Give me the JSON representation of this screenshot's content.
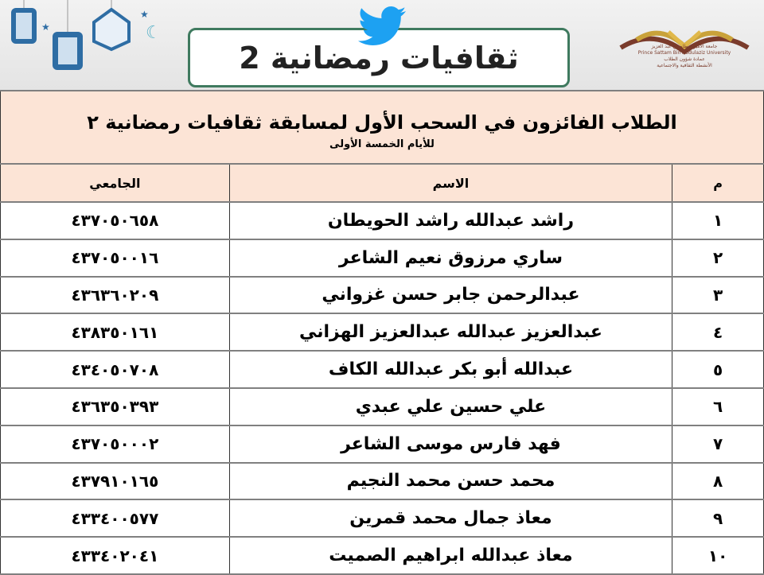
{
  "banner": {
    "title": "ثقافيات رمضانية 2"
  },
  "logo": {
    "lines": [
      "جامعة الأمير سطام بن عبد العزيز",
      "Prince Sattam Bin Abdulaziz University",
      "عمادة شؤون الطلاب",
      "الأنشطة الثقافية والاجتماعية"
    ]
  },
  "colors": {
    "header_fill": "#fce4d6",
    "banner_border": "#3f7a5f",
    "twitter_blue": "#1da1f2",
    "lantern_blue": "#2e6da4"
  },
  "table": {
    "title": "الطلاب الفائزون في السحب الأول لمسابقة ثقافيات رمضانية ٢",
    "subtitle": "للأيام الخمسة الأولى",
    "columns": [
      "م",
      "الاسم",
      "الجامعي"
    ],
    "rows": [
      {
        "n": "١",
        "name": "راشد عبدالله راشد الحويطان",
        "id": "٤٣٧٠٥٠٦٥٨"
      },
      {
        "n": "٢",
        "name": "ساري مرزوق نعيم الشاعر",
        "id": "٤٣٧٠٥٠٠١٦"
      },
      {
        "n": "٣",
        "name": "عبدالرحمن جابر حسن غزواني",
        "id": "٤٣٦٣٦٠٢٠٩"
      },
      {
        "n": "٤",
        "name": "عبدالعزيز عبدالله عبدالعزيز الهزاني",
        "id": "٤٣٨٣٥٠١٦١"
      },
      {
        "n": "٥",
        "name": "عبدالله أبو بكر عبدالله الكاف",
        "id": "٤٣٤٠٥٠٧٠٨"
      },
      {
        "n": "٦",
        "name": "علي حسين علي عبدي",
        "id": "٤٣٦٣٥٠٣٩٣"
      },
      {
        "n": "٧",
        "name": "فهد فارس موسى الشاعر",
        "id": "٤٣٧٠٥٠٠٠٢"
      },
      {
        "n": "٨",
        "name": "محمد حسن محمد النجيم",
        "id": "٤٣٧٩١٠١٦٥"
      },
      {
        "n": "٩",
        "name": "معاذ جمال محمد قمرين",
        "id": "٤٣٣٤٠٠٥٧٧"
      },
      {
        "n": "١٠",
        "name": "معاذ عبدالله ابراهيم الصميت",
        "id": "٤٣٣٤٠٢٠٤١"
      }
    ]
  }
}
